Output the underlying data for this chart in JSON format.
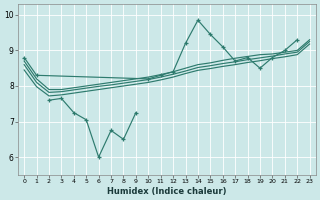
{
  "xlabel": "Humidex (Indice chaleur)",
  "x": [
    0,
    1,
    2,
    3,
    4,
    5,
    6,
    7,
    8,
    9,
    10,
    11,
    12,
    13,
    14,
    15,
    16,
    17,
    18,
    19,
    20,
    21,
    22,
    23
  ],
  "line_spiky1": [
    8.8,
    8.3,
    null,
    null,
    null,
    null,
    null,
    null,
    null,
    null,
    8.2,
    8.3,
    8.4,
    9.2,
    9.85,
    9.45,
    9.1,
    8.7,
    8.8,
    8.5,
    8.8,
    9.0,
    9.3,
    null
  ],
  "line_spiky2": [
    null,
    null,
    7.6,
    7.65,
    7.25,
    7.05,
    6.0,
    6.75,
    6.5,
    7.25,
    null,
    null,
    null,
    null,
    null,
    null,
    null,
    null,
    null,
    null,
    null,
    null,
    null,
    null
  ],
  "line_smooth1": [
    8.7,
    8.2,
    7.9,
    7.9,
    7.95,
    8.0,
    8.05,
    8.1,
    8.15,
    8.2,
    8.25,
    8.32,
    8.4,
    8.5,
    8.6,
    8.65,
    8.72,
    8.78,
    8.83,
    8.88,
    8.9,
    8.95,
    9.0,
    9.3
  ],
  "line_smooth2": [
    8.6,
    8.1,
    7.82,
    7.84,
    7.89,
    7.94,
    7.99,
    8.03,
    8.08,
    8.13,
    8.18,
    8.25,
    8.33,
    8.42,
    8.52,
    8.57,
    8.63,
    8.68,
    8.74,
    8.79,
    8.84,
    8.9,
    8.95,
    9.25
  ],
  "line_smooth3": [
    8.45,
    7.98,
    7.72,
    7.75,
    7.8,
    7.85,
    7.9,
    7.95,
    8.0,
    8.05,
    8.1,
    8.17,
    8.25,
    8.35,
    8.44,
    8.49,
    8.55,
    8.6,
    8.66,
    8.71,
    8.77,
    8.82,
    8.88,
    9.18
  ],
  "background_color": "#cce8e8",
  "line_color": "#2e7b6e",
  "grid_color": "#ffffff",
  "ylim": [
    5.5,
    10.3
  ],
  "yticks": [
    6,
    7,
    8,
    9,
    10
  ],
  "xticks": [
    0,
    1,
    2,
    3,
    4,
    5,
    6,
    7,
    8,
    9,
    10,
    11,
    12,
    13,
    14,
    15,
    16,
    17,
    18,
    19,
    20,
    21,
    22,
    23
  ]
}
